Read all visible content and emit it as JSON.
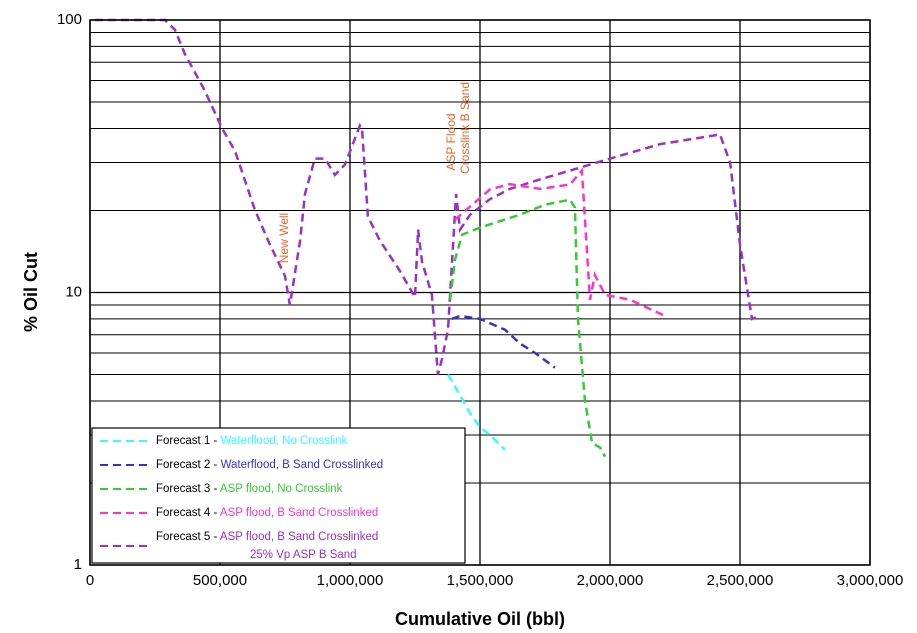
{
  "chart_data": {
    "type": "line",
    "xlabel": "Cumulative Oil (bbl)",
    "ylabel": "% Oil Cut",
    "log_y": true,
    "grid": true,
    "xlim": [
      0,
      3000000
    ],
    "ylim": [
      1,
      100
    ],
    "xticks": [
      0,
      {
        "value": 500000,
        "label": "500,000"
      },
      {
        "value": 1000000,
        "label": "1,000,000"
      },
      {
        "value": 1500000,
        "label": "1,500,000"
      },
      {
        "value": 2000000,
        "label": "2,000,000"
      },
      {
        "value": 2500000,
        "label": "2,500,000"
      },
      {
        "value": 3000000,
        "label": "3,000,000"
      }
    ],
    "yticks": [
      1,
      10,
      100
    ],
    "y_minor_gridlines": [
      2,
      3,
      4,
      5,
      6,
      7,
      8,
      9,
      20,
      30,
      40,
      50,
      60,
      70,
      80,
      90
    ],
    "annotations": [
      "New Well",
      "ASP Flood",
      "Crosslink B Sand"
    ],
    "series": [
      {
        "name": "Forecast 5 - ASP flood, B Sand Crosslinked",
        "legend_note": "25% Vp ASP B Sand",
        "color": "#9a2fc9",
        "x": [
          19000,
          288000,
          327000,
          365000,
          442000,
          508000,
          558000,
          635000,
          692000,
          750000,
          769000,
          808000,
          827000,
          865000,
          904000,
          942000,
          981000,
          1038000,
          1046000,
          1069000,
          1115000,
          1192000,
          1250000,
          1262000,
          1277000,
          1315000,
          1338000,
          1354000,
          1377000,
          1392000,
          1408000,
          1423000,
          1462000,
          1538000,
          1615000,
          1731000,
          1846000,
          2000000,
          2192000,
          2423000,
          2462000,
          2500000,
          2546000,
          2577000
        ],
        "values": [
          100,
          100,
          92,
          75,
          55,
          40,
          33,
          20,
          15,
          11.5,
          9,
          15.5,
          23,
          31,
          31,
          27,
          29.5,
          41,
          40,
          19,
          15.5,
          12,
          9.6,
          17,
          13,
          9.8,
          5,
          5.7,
          7.3,
          12.7,
          23,
          17,
          19.3,
          22,
          24,
          26,
          28,
          31,
          35,
          38,
          30,
          15,
          8,
          8.2
        ]
      },
      {
        "name": "Forecast 4 - ASP flood, B Sand Crosslinked",
        "color": "#ff33cc",
        "x": [
          1404000,
          1538000,
          1615000,
          1731000,
          1846000,
          1892000,
          1923000,
          1942000,
          1981000,
          2077000,
          2212000
        ],
        "values": [
          18.5,
          23.9,
          25,
          24,
          24.9,
          28,
          9.4,
          11.6,
          9.8,
          9.4,
          8.2
        ]
      },
      {
        "name": "Forecast 3 - ASP flood, No Crosslink",
        "color": "#33cc33",
        "x": [
          1385000,
          1404000,
          1431000,
          1500000,
          1654000,
          1750000,
          1846000,
          1865000,
          1877000,
          1904000,
          1931000,
          1962000,
          1981000
        ],
        "values": [
          9.4,
          13.2,
          16.3,
          17.3,
          19.3,
          21,
          21.9,
          20.5,
          8,
          4,
          2.8,
          2.7,
          2.5
        ]
      },
      {
        "name": "Forecast 2 - Waterflood, B Sand Crosslinked",
        "color": "#3333cc",
        "x": [
          1392000,
          1423000,
          1500000,
          1596000,
          1654000,
          1712000,
          1788000
        ],
        "values": [
          8,
          8.2,
          8,
          7.3,
          6.5,
          6,
          5.3
        ]
      },
      {
        "name": "Forecast 1 - Waterflood, No Crosslink",
        "color": "#33ffff",
        "x": [
          1377000,
          1423000,
          1462000,
          1500000,
          1538000,
          1596000
        ],
        "values": [
          5,
          4.2,
          3.6,
          3.2,
          3,
          2.65
        ]
      }
    ]
  }
}
